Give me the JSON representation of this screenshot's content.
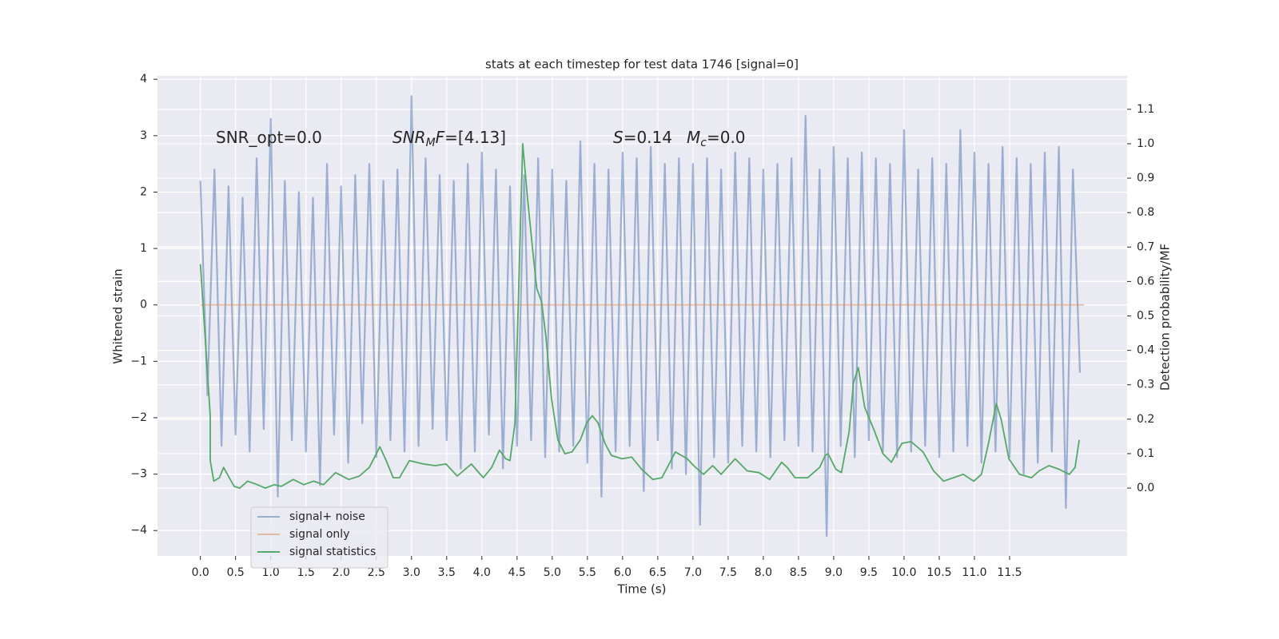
{
  "chart_data": {
    "type": "line",
    "title": "stats at each timestep for test data 1746 [signal=0]",
    "xlabel": "Time (s)",
    "ylabel": "Whitened strain",
    "y2label": "Detection probability/MF",
    "xlim": [
      -0.61,
      13.17
    ],
    "ylim": [
      -4.45,
      4.06
    ],
    "y2lim": [
      -0.197,
      1.197
    ],
    "xticks": [
      {
        "value": 0,
        "label": "0.0"
      },
      0.5,
      {
        "value": 1,
        "label": "1.0"
      },
      1.5,
      {
        "value": 2,
        "label": "2.0"
      },
      2.5,
      {
        "value": 3,
        "label": "3.0"
      },
      3.5,
      {
        "value": 4,
        "label": "4.0"
      },
      4.5,
      {
        "value": 5,
        "label": "5.0"
      },
      5.5,
      {
        "value": 6,
        "label": "6.0"
      },
      6.5,
      {
        "value": 7,
        "label": "7.0"
      },
      7.5,
      {
        "value": 8,
        "label": "8.0"
      },
      8.5,
      {
        "value": 9,
        "label": "9.0"
      },
      9.5,
      {
        "value": 10,
        "label": "10.0"
      },
      10.5,
      {
        "value": 11,
        "label": "11.0"
      },
      11.5
    ],
    "yticks": [
      {
        "value": -4,
        "label": "−4"
      },
      {
        "value": -3,
        "label": "−3"
      },
      {
        "value": -2,
        "label": "−2"
      },
      {
        "value": -1,
        "label": "−1"
      },
      0,
      1,
      2,
      3,
      4
    ],
    "y2ticks": [
      {
        "value": 0,
        "label": "0.0"
      },
      0.1,
      0.2,
      0.3,
      0.4,
      0.5,
      0.6,
      0.7,
      0.8,
      0.9,
      {
        "value": 1,
        "label": "1.0"
      },
      1.1
    ],
    "grid": true,
    "background": "#eaeaf2",
    "legend_position": "lower left",
    "annotations": [
      [
        {
          "text": "SNR_opt=0.0"
        }
      ],
      [
        {
          "text": "SNR",
          "italic": true
        },
        {
          "text": "M",
          "italic": true,
          "sub": true
        },
        {
          "text": "F",
          "italic": true
        },
        {
          "text": "=[4.13]"
        }
      ],
      [
        {
          "text": "S",
          "italic": true
        },
        {
          "text": "=0.14"
        }
      ],
      [
        {
          "text": "M",
          "italic": true
        },
        {
          "text": "c",
          "italic": true,
          "sub": true
        },
        {
          "text": "=0.0"
        }
      ]
    ],
    "series": [
      {
        "name": "signal+ noise",
        "color": "#4c72b0",
        "alpha": 0.5,
        "x": [
          0.0,
          0.1,
          0.2,
          0.3,
          0.4,
          0.5,
          0.6,
          0.7,
          0.8,
          0.9,
          1.0,
          1.1,
          1.2,
          1.3,
          1.4,
          1.5,
          1.6,
          1.7,
          1.8,
          1.9,
          2.0,
          2.1,
          2.2,
          2.3,
          2.4,
          2.5,
          2.6,
          2.7,
          2.8,
          2.9,
          3.0,
          3.1,
          3.2,
          3.3,
          3.4,
          3.5,
          3.6,
          3.7,
          3.8,
          3.9,
          4.0,
          4.1,
          4.2,
          4.3,
          4.4,
          4.5,
          4.6,
          4.7,
          4.8,
          4.9,
          5.0,
          5.1,
          5.2,
          5.3,
          5.4,
          5.5,
          5.6,
          5.7,
          5.8,
          5.9,
          6.0,
          6.1,
          6.2,
          6.3,
          6.4,
          6.5,
          6.6,
          6.7,
          6.8,
          6.9,
          7.0,
          7.1,
          7.2,
          7.3,
          7.4,
          7.5,
          7.6,
          7.7,
          7.8,
          7.9,
          8.0,
          8.1,
          8.2,
          8.3,
          8.4,
          8.5,
          8.6,
          8.7,
          8.8,
          8.9,
          9.0,
          9.1,
          9.2,
          9.3,
          9.4,
          9.5,
          9.6,
          9.7,
          9.8,
          9.9,
          10.0,
          10.1,
          10.2,
          10.3,
          10.4,
          10.5,
          10.6,
          10.7,
          10.8,
          10.9,
          11.0,
          11.1,
          11.2,
          11.3,
          11.4,
          11.5,
          11.6,
          11.7,
          11.8,
          11.9,
          12.0,
          12.1,
          12.2,
          12.3,
          12.4,
          12.5
        ],
        "values": [
          2.2,
          -1.6,
          2.4,
          -2.5,
          2.1,
          -2.3,
          1.9,
          -2.6,
          2.6,
          -2.2,
          3.3,
          -3.4,
          2.2,
          -2.4,
          2.0,
          -2.6,
          1.9,
          -3.2,
          2.5,
          -2.3,
          2.1,
          -2.8,
          2.3,
          -2.1,
          2.5,
          -2.7,
          2.2,
          -2.4,
          2.4,
          -2.6,
          3.7,
          -2.5,
          2.6,
          -2.2,
          2.3,
          -2.4,
          2.2,
          -2.9,
          2.5,
          -2.6,
          2.7,
          -2.3,
          2.4,
          -2.9,
          2.1,
          -2.5,
          2.3,
          -2.4,
          2.6,
          -2.7,
          2.4,
          -2.6,
          2.2,
          -2.5,
          2.9,
          -2.8,
          2.5,
          -3.4,
          2.4,
          -2.6,
          2.7,
          -2.5,
          2.6,
          -3.3,
          2.8,
          -2.4,
          2.5,
          -2.9,
          2.6,
          -3.0,
          2.5,
          -3.9,
          2.6,
          -2.7,
          2.4,
          -2.8,
          2.7,
          -2.5,
          2.6,
          -2.6,
          2.4,
          -2.7,
          2.5,
          -2.4,
          2.6,
          -2.5,
          3.35,
          -2.6,
          2.4,
          -4.1,
          2.8,
          -2.5,
          2.6,
          -2.7,
          2.7,
          -2.4,
          2.6,
          -2.6,
          2.5,
          -2.7,
          3.1,
          -2.6,
          2.4,
          -2.5,
          2.6,
          -2.7,
          2.5,
          -2.6,
          3.1,
          -2.5,
          2.7,
          -2.8,
          2.5,
          -2.6,
          2.8,
          -2.7,
          2.6,
          -3.0,
          2.5,
          -2.8,
          2.7,
          -2.6,
          2.8,
          -3.6,
          2.4,
          -1.2
        ]
      },
      {
        "name": "signal only",
        "color": "#dd8452",
        "alpha": 0.5,
        "x": [
          0.0,
          12.56
        ],
        "values": [
          0,
          0
        ]
      },
      {
        "name": "signal statistics",
        "color": "#55a868",
        "alpha": 1,
        "axis": "y2",
        "x": [
          0,
          0.14,
          0.14,
          0.19,
          0.27,
          0.33,
          0.41,
          0.48,
          0.56,
          0.67,
          0.81,
          0.92,
          1.05,
          1.15,
          1.32,
          1.47,
          1.61,
          1.75,
          1.92,
          2.11,
          2.26,
          2.4,
          2.55,
          2.64,
          2.74,
          2.83,
          2.97,
          3.17,
          3.34,
          3.49,
          3.65,
          3.85,
          4.02,
          4.14,
          4.25,
          4.34,
          4.4,
          4.47,
          4.58,
          4.65,
          4.73,
          4.78,
          4.85,
          4.91,
          4.99,
          5.08,
          5.18,
          5.28,
          5.4,
          5.49,
          5.57,
          5.65,
          5.75,
          5.84,
          5.99,
          6.13,
          6.27,
          6.43,
          6.56,
          6.75,
          6.92,
          7.01,
          7.15,
          7.28,
          7.4,
          7.51,
          7.6,
          7.77,
          7.94,
          8.09,
          8.26,
          8.34,
          8.45,
          8.63,
          8.8,
          8.88,
          8.92,
          9.03,
          9.11,
          9.22,
          9.28,
          9.35,
          9.44,
          9.58,
          9.7,
          9.82,
          9.97,
          10.1,
          10.27,
          10.42,
          10.56,
          10.7,
          10.84,
          10.99,
          11.1,
          11.2,
          11.31,
          11.38,
          11.49,
          11.64,
          11.81,
          11.92,
          12.06,
          12.2,
          12.35,
          12.43,
          12.49
        ],
        "values": [
          0.65,
          0.21,
          0.08,
          0.02,
          0.03,
          0.06,
          0.03,
          0.005,
          0.0,
          0.02,
          0.01,
          0.0,
          0.01,
          0.005,
          0.025,
          0.01,
          0.02,
          0.01,
          0.045,
          0.025,
          0.035,
          0.06,
          0.12,
          0.08,
          0.03,
          0.03,
          0.08,
          0.07,
          0.065,
          0.07,
          0.035,
          0.07,
          0.03,
          0.06,
          0.11,
          0.085,
          0.08,
          0.19,
          1.0,
          0.84,
          0.675,
          0.58,
          0.54,
          0.44,
          0.26,
          0.14,
          0.1,
          0.105,
          0.14,
          0.19,
          0.21,
          0.19,
          0.13,
          0.095,
          0.085,
          0.09,
          0.055,
          0.025,
          0.03,
          0.105,
          0.085,
          0.065,
          0.04,
          0.065,
          0.04,
          0.065,
          0.085,
          0.05,
          0.045,
          0.025,
          0.075,
          0.06,
          0.03,
          0.03,
          0.06,
          0.095,
          0.1,
          0.055,
          0.045,
          0.165,
          0.305,
          0.35,
          0.235,
          0.165,
          0.1,
          0.075,
          0.13,
          0.135,
          0.105,
          0.05,
          0.02,
          0.03,
          0.04,
          0.02,
          0.04,
          0.13,
          0.245,
          0.2,
          0.085,
          0.04,
          0.03,
          0.05,
          0.065,
          0.055,
          0.04,
          0.06,
          0.14
        ]
      }
    ]
  }
}
